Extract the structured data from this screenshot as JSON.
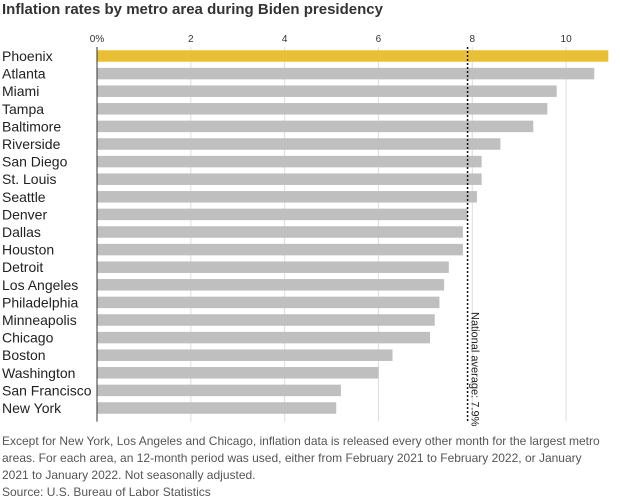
{
  "chart_data": {
    "type": "bar",
    "orientation": "horizontal",
    "title": "Inflation rates by metro area during Biden presidency",
    "categories": [
      "Phoenix",
      "Atlanta",
      "Miami",
      "Tampa",
      "Baltimore",
      "Riverside",
      "San Diego",
      "St. Louis",
      "Seattle",
      "Denver",
      "Dallas",
      "Houston",
      "Detroit",
      "Los Angeles",
      "Philadelphia",
      "Minneapolis",
      "Chicago",
      "Boston",
      "Washington",
      "San Francisco",
      "New York"
    ],
    "values": [
      10.9,
      10.6,
      9.8,
      9.6,
      9.3,
      8.6,
      8.2,
      8.2,
      8.1,
      7.9,
      7.8,
      7.8,
      7.5,
      7.4,
      7.3,
      7.2,
      7.1,
      6.3,
      6.0,
      5.2,
      5.1
    ],
    "highlight": "Phoenix",
    "xlim": [
      0,
      11
    ],
    "xticks": [
      0,
      2,
      4,
      6,
      8,
      10
    ],
    "xtick_labels": [
      "0%",
      "2",
      "4",
      "6",
      "8",
      "10"
    ],
    "reference_line": {
      "value": 7.9,
      "label": "National average: 7.9%"
    },
    "colors": {
      "bar": "#bfbfbf",
      "highlight": "#e8bf35",
      "reference": "#111111",
      "grid": "#dddddd"
    },
    "grid": true
  },
  "notes": "Except for New York, Los Angeles and Chicago, inflation data is released every other month for the largest metro areas. For each area, an 12-month period was used, either from February 2021 to February 2022, or January 2021 to January 2022. Not seasonally adjusted.",
  "source": "Source: U.S. Bureau of Labor Statistics"
}
